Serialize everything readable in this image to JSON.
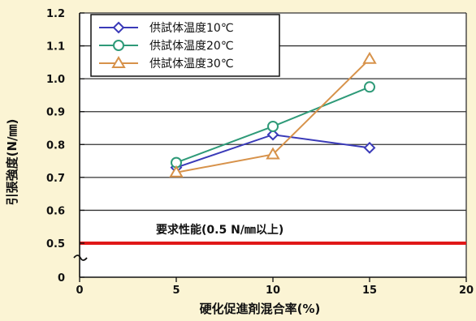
{
  "chart_data": {
    "type": "line",
    "xlabel": "硬化促進剤混合率(%)",
    "ylabel": "引張強度(N/㎜)",
    "xlim": [
      0,
      20
    ],
    "ylim": [
      0,
      1.2
    ],
    "x_ticks": [
      0,
      5,
      10,
      15,
      20
    ],
    "y_ticks": [
      0,
      0.5,
      0.6,
      0.7,
      0.8,
      0.9,
      1.0,
      1.1,
      1.2
    ],
    "y_tick_labels": [
      "0",
      "0.5",
      "0.6",
      "0.7",
      "0.8",
      "0.9",
      "1.0",
      "1.1",
      "1.2"
    ],
    "y_axis_break": true,
    "grid": "horizontal",
    "legend_position": "top-left",
    "series": [
      {
        "name": "供試体温度10℃",
        "marker": "diamond",
        "color": "#3a3ab8",
        "x": [
          5,
          10,
          15
        ],
        "y": [
          0.73,
          0.83,
          0.79
        ]
      },
      {
        "name": "供試体温度20℃",
        "marker": "circle",
        "color": "#2e9a78",
        "x": [
          5,
          10,
          15
        ],
        "y": [
          0.745,
          0.855,
          0.975
        ]
      },
      {
        "name": "供試体温度30℃",
        "marker": "triangle",
        "color": "#d7924a",
        "x": [
          5,
          10,
          15
        ],
        "y": [
          0.715,
          0.77,
          1.06
        ]
      }
    ],
    "reference_line": {
      "y": 0.5,
      "color": "#e01818",
      "label": "要求性能(0.5 N/㎜以上)"
    }
  }
}
